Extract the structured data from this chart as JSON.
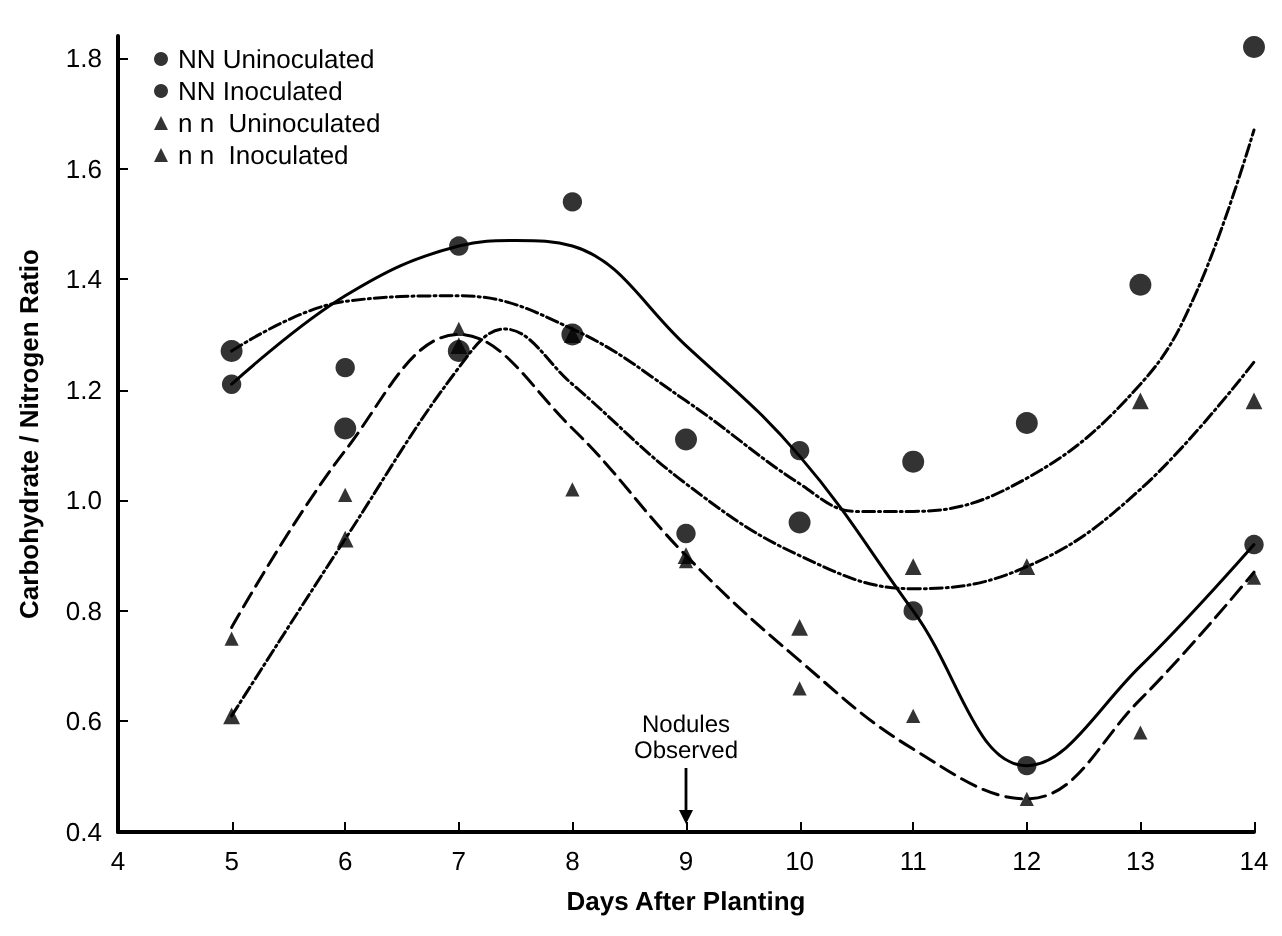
{
  "chart_data": {
    "type": "scatter",
    "xlabel": "Days After Planting",
    "ylabel": "Carbohydrate / Nitrogen Ratio",
    "xlim": [
      4,
      14
    ],
    "xticks": [
      4,
      5,
      6,
      7,
      8,
      9,
      10,
      11,
      12,
      13,
      14
    ],
    "ylim": [
      0.4,
      1.84
    ],
    "yticks": [
      0.4,
      0.6,
      0.8,
      {
        "value": 1,
        "label": "1.0"
      },
      1.2,
      1.4,
      1.6,
      1.8
    ],
    "grid": false,
    "legend": "top left",
    "annotations": [
      "Nodules Observed"
    ],
    "series": [
      {
        "name": "NN Uninoculated",
        "marker": "circle",
        "color": "#000000",
        "x": [
          5,
          6,
          7,
          8,
          9,
          10,
          11,
          12,
          13,
          14
        ],
        "values": [
          1.27,
          1.13,
          1.27,
          1.3,
          1.11,
          0.96,
          1.07,
          1.14,
          1.39,
          1.82
        ]
      },
      {
        "name": "NN Inoculated",
        "marker": "circle",
        "color": "#000000",
        "x": [
          5,
          6,
          7,
          8,
          9,
          10,
          11,
          12,
          13,
          14
        ],
        "values": [
          1.21,
          1.24,
          1.46,
          1.54,
          0.94,
          1.09,
          0.8,
          0.52,
          null,
          0.92
        ]
      },
      {
        "name": "n n  Uninoculated",
        "marker": "triangle",
        "color": "#000000",
        "x": [
          5,
          6,
          7,
          8,
          9,
          10,
          11,
          12,
          13,
          14
        ],
        "values": [
          0.61,
          0.93,
          1.28,
          1.3,
          0.9,
          0.77,
          0.88,
          0.88,
          1.18,
          1.18
        ]
      },
      {
        "name": "n n  Inoculated",
        "marker": "triangle",
        "color": "#000000",
        "x": [
          5,
          6,
          7,
          8,
          9,
          10,
          11,
          12,
          13,
          14
        ],
        "values": [
          0.75,
          1.01,
          1.31,
          1.02,
          0.89,
          0.66,
          0.61,
          0.46,
          0.58,
          0.86
        ]
      },
      {
        "type": "line",
        "line_style": "dotted",
        "color": "#000000",
        "x": [
          5,
          6,
          7,
          8,
          9,
          10,
          10.5,
          11,
          12,
          13,
          13.5,
          14
        ],
        "values": [
          1.27,
          1.36,
          1.37,
          1.31,
          1.18,
          1.03,
          0.98,
          0.98,
          1.04,
          1.21,
          1.38,
          1.67
        ]
      },
      {
        "type": "line",
        "line_style": "solid",
        "color": "#000000",
        "x": [
          5,
          6,
          7,
          7.5,
          8,
          9,
          10,
          11,
          12,
          13,
          14
        ],
        "values": [
          1.21,
          1.37,
          1.46,
          1.47,
          1.46,
          1.28,
          1.08,
          0.8,
          0.52,
          0.7,
          0.92
        ]
      },
      {
        "type": "line",
        "line_style": "dotted",
        "color": "#000000",
        "x": [
          5,
          6,
          7,
          7.4,
          8,
          9,
          10,
          11,
          12,
          13,
          14
        ],
        "values": [
          0.61,
          0.93,
          1.24,
          1.31,
          1.21,
          1.03,
          0.9,
          0.84,
          0.88,
          1.02,
          1.25
        ]
      },
      {
        "type": "line",
        "line_style": "dashed",
        "color": "#000000",
        "x": [
          5,
          6,
          7,
          8,
          9,
          10,
          11,
          12,
          13,
          14
        ],
        "values": [
          0.77,
          1.09,
          1.3,
          1.13,
          0.9,
          0.71,
          0.55,
          0.46,
          0.64,
          0.87
        ]
      }
    ]
  }
}
